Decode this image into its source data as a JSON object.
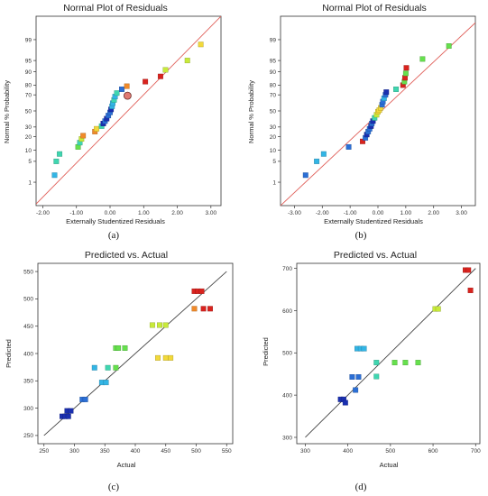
{
  "captions": [
    "(a)",
    "(b)",
    "(c)",
    "(d)"
  ],
  "colors": {
    "fit_line": "#e0605a",
    "frame": "#333333",
    "ramp": [
      "#1a2fb0",
      "#2b6fd6",
      "#33b5e5",
      "#3fd6b0",
      "#66e04d",
      "#c8ea3a",
      "#f2d93a",
      "#f08a2a",
      "#d9231e"
    ]
  },
  "chart_data": [
    {
      "type": "scatter",
      "title": "Normal Plot of Residuals",
      "xlabel": "Externally Studentized Residuals",
      "ylabel": "Normal % Probability",
      "xlim": [
        -2.2,
        3.3
      ],
      "xticks": [
        "-2.00",
        "-1.00",
        "0.00",
        "1.00",
        "2.00",
        "3.00"
      ],
      "xtick_values": [
        -2,
        -1,
        0,
        1,
        2,
        3
      ],
      "yscale": "probability",
      "ylim": [
        0.1,
        99.9
      ],
      "yticks": [
        "1",
        "5",
        "10",
        "20",
        "30",
        "50",
        "70",
        "80",
        "90",
        "95",
        "99"
      ],
      "ytick_values": [
        1,
        5,
        10,
        20,
        30,
        50,
        70,
        80,
        90,
        95,
        99
      ],
      "line": {
        "x": [
          -2.2,
          3.3
        ],
        "y": [
          0.12,
          99.9
        ]
      },
      "grid": false,
      "points": [
        {
          "x": -1.65,
          "y": 1.8,
          "c": 2
        },
        {
          "x": -1.6,
          "y": 5,
          "c": 3
        },
        {
          "x": -1.5,
          "y": 8,
          "c": 3
        },
        {
          "x": -0.95,
          "y": 12,
          "c": 4
        },
        {
          "x": -0.9,
          "y": 15,
          "c": 3
        },
        {
          "x": -0.85,
          "y": 18,
          "c": 5
        },
        {
          "x": -0.8,
          "y": 21,
          "c": 7
        },
        {
          "x": -0.45,
          "y": 25,
          "c": 7
        },
        {
          "x": -0.4,
          "y": 28,
          "c": 6
        },
        {
          "x": -0.25,
          "y": 31,
          "c": 3
        },
        {
          "x": -0.2,
          "y": 34,
          "c": 0
        },
        {
          "x": -0.15,
          "y": 37,
          "c": 1
        },
        {
          "x": -0.1,
          "y": 40,
          "c": 0
        },
        {
          "x": -0.05,
          "y": 44,
          "c": 1
        },
        {
          "x": 0.0,
          "y": 48,
          "c": 1
        },
        {
          "x": 0.03,
          "y": 52,
          "c": 0
        },
        {
          "x": 0.06,
          "y": 56,
          "c": 2
        },
        {
          "x": 0.08,
          "y": 60,
          "c": 2
        },
        {
          "x": 0.12,
          "y": 64,
          "c": 3
        },
        {
          "x": 0.15,
          "y": 68,
          "c": 2
        },
        {
          "x": 0.2,
          "y": 72,
          "c": 3
        },
        {
          "x": 0.35,
          "y": 76,
          "c": 1
        },
        {
          "x": 0.5,
          "y": 79,
          "c": 7
        },
        {
          "x": 1.05,
          "y": 83,
          "c": 8
        },
        {
          "x": 1.5,
          "y": 87,
          "c": 8
        },
        {
          "x": 1.65,
          "y": 91,
          "c": 5
        },
        {
          "x": 2.3,
          "y": 95,
          "c": 5
        },
        {
          "x": 2.7,
          "y": 98.5,
          "c": 6
        }
      ],
      "highlight": {
        "x": 0.52,
        "y": 69
      }
    },
    {
      "type": "scatter",
      "title": "Normal Plot of Residuals",
      "xlabel": "Externally Studentized Residuals",
      "ylabel": "Normal % Probability",
      "xlim": [
        -3.5,
        3.5
      ],
      "xticks": [
        "-3.00",
        "-2.00",
        "-1.00",
        "0.00",
        "1.00",
        "2.00",
        "3.00"
      ],
      "xtick_values": [
        -3,
        -2,
        -1,
        0,
        1,
        2,
        3
      ],
      "yscale": "probability",
      "ylim": [
        0.1,
        99.9
      ],
      "yticks": [
        "1",
        "5",
        "10",
        "20",
        "30",
        "50",
        "70",
        "80",
        "90",
        "95",
        "99"
      ],
      "ytick_values": [
        1,
        5,
        10,
        20,
        30,
        50,
        70,
        80,
        90,
        95,
        99
      ],
      "line": {
        "x": [
          -3.5,
          3.5
        ],
        "y": [
          0.1,
          99.8
        ]
      },
      "grid": false,
      "points": [
        {
          "x": -2.6,
          "y": 1.8,
          "c": 1
        },
        {
          "x": -2.2,
          "y": 5,
          "c": 2
        },
        {
          "x": -1.95,
          "y": 8,
          "c": 2
        },
        {
          "x": -1.05,
          "y": 12,
          "c": 1
        },
        {
          "x": -0.55,
          "y": 16,
          "c": 8
        },
        {
          "x": -0.45,
          "y": 19,
          "c": 1
        },
        {
          "x": -0.4,
          "y": 22,
          "c": 0
        },
        {
          "x": -0.35,
          "y": 25,
          "c": 1
        },
        {
          "x": -0.3,
          "y": 28,
          "c": 1
        },
        {
          "x": -0.25,
          "y": 31,
          "c": 0
        },
        {
          "x": -0.22,
          "y": 34,
          "c": 1
        },
        {
          "x": -0.18,
          "y": 37,
          "c": 0
        },
        {
          "x": -0.12,
          "y": 41,
          "c": 3
        },
        {
          "x": -0.05,
          "y": 45,
          "c": 5
        },
        {
          "x": 0.0,
          "y": 49,
          "c": 6
        },
        {
          "x": 0.05,
          "y": 51,
          "c": 6
        },
        {
          "x": 0.1,
          "y": 54,
          "c": 6
        },
        {
          "x": 0.15,
          "y": 58,
          "c": 1
        },
        {
          "x": 0.18,
          "y": 62,
          "c": 1
        },
        {
          "x": 0.22,
          "y": 66,
          "c": 2
        },
        {
          "x": 0.27,
          "y": 70,
          "c": 1
        },
        {
          "x": 0.3,
          "y": 73,
          "c": 0
        },
        {
          "x": 0.65,
          "y": 76,
          "c": 3
        },
        {
          "x": 0.9,
          "y": 80,
          "c": 8
        },
        {
          "x": 0.95,
          "y": 83,
          "c": 4
        },
        {
          "x": 0.97,
          "y": 86,
          "c": 8
        },
        {
          "x": 1.0,
          "y": 89,
          "c": 4
        },
        {
          "x": 1.02,
          "y": 92,
          "c": 8
        },
        {
          "x": 1.6,
          "y": 95.5,
          "c": 4
        },
        {
          "x": 2.55,
          "y": 98.3,
          "c": 4
        }
      ]
    },
    {
      "type": "scatter",
      "title": "Predicted vs. Actual",
      "xlabel": "Actual",
      "ylabel": "Predicted",
      "xlim": [
        240,
        560
      ],
      "ylim": [
        235,
        565
      ],
      "xticks": [
        "250",
        "300",
        "350",
        "400",
        "450",
        "500",
        "550"
      ],
      "xtick_values": [
        250,
        300,
        350,
        400,
        450,
        500,
        550
      ],
      "yticks": [
        "250",
        "300",
        "350",
        "400",
        "450",
        "500",
        "550"
      ],
      "ytick_values": [
        250,
        300,
        350,
        400,
        450,
        500,
        550
      ],
      "line": {
        "x": [
          250,
          550
        ],
        "y": [
          250,
          550
        ]
      },
      "grid": false,
      "points": [
        {
          "x": 280,
          "y": 285,
          "c": 0
        },
        {
          "x": 285,
          "y": 285,
          "c": 0
        },
        {
          "x": 290,
          "y": 285,
          "c": 0
        },
        {
          "x": 288,
          "y": 295,
          "c": 0
        },
        {
          "x": 294,
          "y": 295,
          "c": 0
        },
        {
          "x": 313,
          "y": 316,
          "c": 1
        },
        {
          "x": 318,
          "y": 316,
          "c": 1
        },
        {
          "x": 333,
          "y": 374,
          "c": 2
        },
        {
          "x": 345,
          "y": 347,
          "c": 2
        },
        {
          "x": 352,
          "y": 347,
          "c": 2
        },
        {
          "x": 355,
          "y": 374,
          "c": 3
        },
        {
          "x": 368,
          "y": 374,
          "c": 4
        },
        {
          "x": 368,
          "y": 410,
          "c": 4
        },
        {
          "x": 372,
          "y": 410,
          "c": 4
        },
        {
          "x": 383,
          "y": 410,
          "c": 4
        },
        {
          "x": 428,
          "y": 452,
          "c": 5
        },
        {
          "x": 440,
          "y": 452,
          "c": 5
        },
        {
          "x": 450,
          "y": 452,
          "c": 5
        },
        {
          "x": 437,
          "y": 392,
          "c": 6
        },
        {
          "x": 450,
          "y": 392,
          "c": 6
        },
        {
          "x": 458,
          "y": 392,
          "c": 6
        },
        {
          "x": 497,
          "y": 514,
          "c": 8
        },
        {
          "x": 503,
          "y": 514,
          "c": 8
        },
        {
          "x": 509,
          "y": 514,
          "c": 8
        },
        {
          "x": 497,
          "y": 482,
          "c": 7
        },
        {
          "x": 512,
          "y": 482,
          "c": 8
        },
        {
          "x": 523,
          "y": 482,
          "c": 8
        }
      ]
    },
    {
      "type": "scatter",
      "title": "Predicted vs. Actual",
      "xlabel": "Actual",
      "ylabel": "Predicted",
      "xlim": [
        280,
        710
      ],
      "ylim": [
        285,
        712
      ],
      "xticks": [
        "300",
        "400",
        "500",
        "600",
        "700"
      ],
      "xtick_values": [
        300,
        400,
        500,
        600,
        700
      ],
      "yticks": [
        "300",
        "400",
        "500",
        "600",
        "700"
      ],
      "ytick_values": [
        300,
        400,
        500,
        600,
        700
      ],
      "line": {
        "x": [
          300,
          700
        ],
        "y": [
          300,
          700
        ]
      },
      "grid": false,
      "points": [
        {
          "x": 383,
          "y": 390,
          "c": 0
        },
        {
          "x": 390,
          "y": 390,
          "c": 0
        },
        {
          "x": 394,
          "y": 382,
          "c": 0
        },
        {
          "x": 410,
          "y": 443,
          "c": 1
        },
        {
          "x": 418,
          "y": 412,
          "c": 1
        },
        {
          "x": 425,
          "y": 443,
          "c": 1
        },
        {
          "x": 422,
          "y": 510,
          "c": 2
        },
        {
          "x": 430,
          "y": 510,
          "c": 2
        },
        {
          "x": 438,
          "y": 510,
          "c": 2
        },
        {
          "x": 467,
          "y": 477,
          "c": 3
        },
        {
          "x": 467,
          "y": 444,
          "c": 3
        },
        {
          "x": 510,
          "y": 477,
          "c": 4
        },
        {
          "x": 535,
          "y": 477,
          "c": 4
        },
        {
          "x": 565,
          "y": 477,
          "c": 4
        },
        {
          "x": 605,
          "y": 604,
          "c": 5
        },
        {
          "x": 612,
          "y": 604,
          "c": 5
        },
        {
          "x": 676,
          "y": 696,
          "c": 8
        },
        {
          "x": 683,
          "y": 696,
          "c": 8
        },
        {
          "x": 688,
          "y": 648,
          "c": 8
        }
      ]
    }
  ]
}
